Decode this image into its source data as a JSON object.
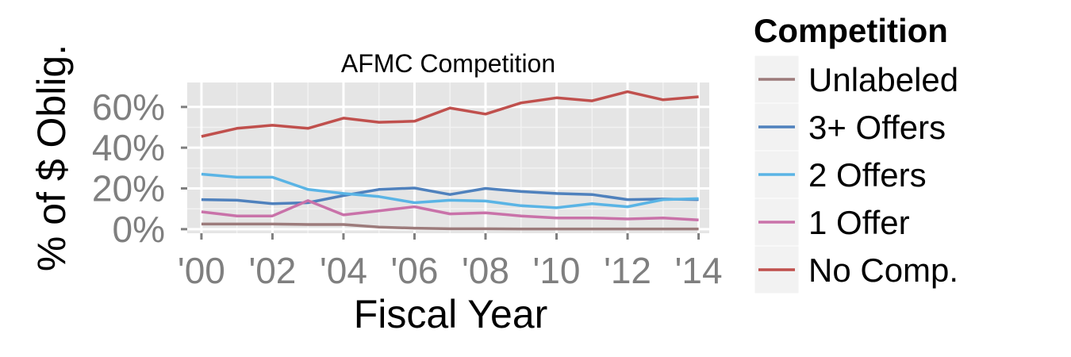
{
  "chart_data": {
    "type": "line",
    "title": "AFMC Competition",
    "xlabel": "Fiscal Year",
    "ylabel": "% of $ Oblig.",
    "x": [
      2000,
      2001,
      2002,
      2003,
      2004,
      2005,
      2006,
      2007,
      2008,
      2009,
      2010,
      2011,
      2012,
      2013,
      2014
    ],
    "x_tick_values": [
      2000,
      2002,
      2004,
      2006,
      2008,
      2010,
      2012,
      2014
    ],
    "x_tick_labels": [
      "'00",
      "'02",
      "'04",
      "'06",
      "'08",
      "'10",
      "'12",
      "'14"
    ],
    "xlim": [
      1999.6,
      2014.3
    ],
    "y_tick_values": [
      0,
      20,
      40,
      60
    ],
    "y_tick_labels": [
      "0%",
      "20%",
      "40%",
      "60%"
    ],
    "ylim": [
      -2,
      72
    ],
    "grid": true,
    "legend_title": "Competition",
    "legend_position": "right",
    "series": [
      {
        "name": "Unlabeled",
        "color": "#9c7b7b",
        "values": [
          2.5,
          2.5,
          2.5,
          2.3,
          2.3,
          1.0,
          0.5,
          0.2,
          0.2,
          0.1,
          0.1,
          0.1,
          0.1,
          0.1,
          0.1
        ]
      },
      {
        "name": "3+ Offers",
        "color": "#4f81bd",
        "values": [
          14.5,
          14.2,
          12.5,
          13.0,
          16.5,
          19.5,
          20.2,
          17.0,
          20.0,
          18.5,
          17.5,
          17.0,
          14.5,
          14.8,
          14.5
        ]
      },
      {
        "name": "2 Offers",
        "color": "#5ab4e5",
        "values": [
          27.0,
          25.5,
          25.5,
          19.5,
          17.5,
          16.0,
          13.0,
          14.2,
          13.8,
          11.5,
          10.5,
          12.5,
          11.0,
          14.5,
          15.0
        ]
      },
      {
        "name": "1 Offer",
        "color": "#c972a9",
        "values": [
          8.5,
          6.5,
          6.5,
          14.0,
          7.0,
          9.0,
          11.0,
          7.5,
          8.0,
          6.5,
          5.5,
          5.5,
          5.0,
          5.5,
          4.5
        ]
      },
      {
        "name": "No Comp.",
        "color": "#c0504d",
        "values": [
          45.5,
          49.5,
          51.0,
          49.5,
          54.5,
          52.5,
          53.0,
          59.5,
          56.5,
          62.0,
          64.5,
          63.0,
          67.5,
          63.5,
          65.0
        ]
      }
    ]
  }
}
